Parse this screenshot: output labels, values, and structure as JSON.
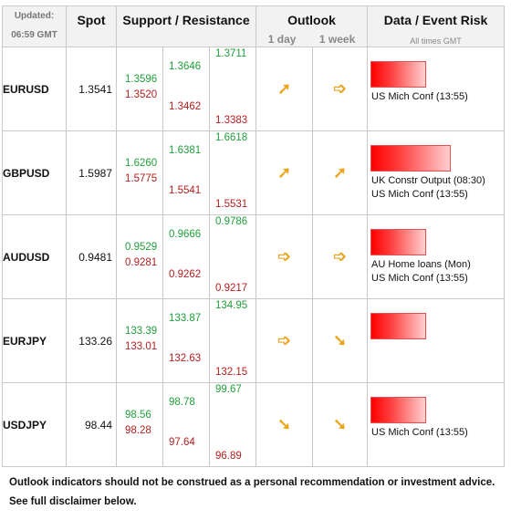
{
  "header": {
    "updated_label": "Updated:",
    "updated_time": "06:59 GMT",
    "spot": "Spot",
    "support_resistance": "Support / Resistance",
    "outlook": "Outlook",
    "outlook_1day": "1 day",
    "outlook_1week": "1 week",
    "data_event_risk": "Data / Event Risk",
    "all_times_gmt": "All times GMT"
  },
  "rows": [
    {
      "pair": "EURUSD",
      "spot": "1.3541",
      "col1_top": "1.3596",
      "col1_bottom": "1.3520",
      "col2_top": "1.3646",
      "col2_bottom": "1.3462",
      "col3_top": "1.3711",
      "col3_bottom": "1.3383",
      "outlook_1day": "up-right",
      "outlook_1week": "right",
      "risk_level": 0.55,
      "events": [
        "US Mich Conf (13:55)"
      ]
    },
    {
      "pair": "GBPUSD",
      "spot": "1.5987",
      "col1_top": "1.6260",
      "col1_bottom": "1.5775",
      "col2_top": "1.6381",
      "col2_bottom": "1.5541",
      "col3_top": "1.6618",
      "col3_bottom": "1.5531",
      "outlook_1day": "up-right",
      "outlook_1week": "up-right",
      "risk_level": 0.8,
      "events": [
        "UK Constr Output (08:30)",
        "US Mich Conf (13:55)"
      ]
    },
    {
      "pair": "AUDUSD",
      "spot": "0.9481",
      "col1_top": "0.9529",
      "col1_bottom": "0.9281",
      "col2_top": "0.9666",
      "col2_bottom": "0.9262",
      "col3_top": "0.9786",
      "col3_bottom": "0.9217",
      "outlook_1day": "right",
      "outlook_1week": "right",
      "risk_level": 0.55,
      "events": [
        "AU Home loans (Mon)",
        "US Mich Conf (13:55)"
      ]
    },
    {
      "pair": "EURJPY",
      "spot": "133.26",
      "col1_top": "133.39",
      "col1_bottom": "133.01",
      "col2_top": "133.87",
      "col2_bottom": "132.63",
      "col3_top": "134.95",
      "col3_bottom": "132.15",
      "outlook_1day": "right",
      "outlook_1week": "down-right",
      "risk_level": 0.55,
      "events": []
    },
    {
      "pair": "USDJPY",
      "spot": "98.44",
      "col1_top": "98.56",
      "col1_bottom": "98.28",
      "col2_top": "98.78",
      "col2_bottom": "97.64",
      "col3_top": "99.67",
      "col3_bottom": "96.89",
      "outlook_1day": "down-right",
      "outlook_1week": "down-right",
      "risk_level": 0.55,
      "events": [
        "US Mich Conf (13:55)"
      ]
    }
  ],
  "footer": {
    "line1": "Outlook indicators should not be construed as a personal recommendation or investment advice.",
    "line2": "See full disclaimer below."
  },
  "colors": {
    "support": "#b41e1e",
    "resistance": "#1f9e3a",
    "arrow": "#f2a40c",
    "risk_bar": "#ff0000"
  }
}
